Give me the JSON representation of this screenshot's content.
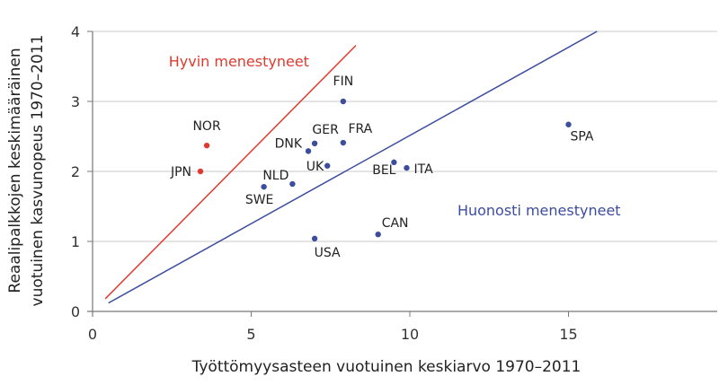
{
  "chart_data": {
    "type": "scatter",
    "title": "",
    "xlabel": "Työttömyysasteen vuotuinen keskiarvo 1970–2011",
    "ylabel_lines": [
      "Reaalipalkkojen keskimääräinen",
      "vuotuinen kasvunopeus 1970–2011"
    ],
    "xlim": [
      0,
      19.5
    ],
    "ylim": [
      0,
      4
    ],
    "xticks": [
      0,
      5,
      10,
      15
    ],
    "yticks": [
      0,
      1,
      2,
      3,
      4
    ],
    "grid": {
      "horizontal": true,
      "vertical": false
    },
    "series": [
      {
        "name": "Hyvin menestyneet",
        "color": "#e03a2f",
        "points": [
          {
            "label": "NOR",
            "x": 3.6,
            "y": 2.37
          },
          {
            "label": "JPN",
            "x": 3.4,
            "y": 2.0
          }
        ]
      },
      {
        "name": "Huonosti menestyneet",
        "color": "#3d4d9e",
        "points": [
          {
            "label": "FIN",
            "x": 7.9,
            "y": 3.0
          },
          {
            "label": "GER",
            "x": 7.0,
            "y": 2.4
          },
          {
            "label": "FRA",
            "x": 7.9,
            "y": 2.41
          },
          {
            "label": "DNK",
            "x": 6.8,
            "y": 2.29
          },
          {
            "label": "UK",
            "x": 7.4,
            "y": 2.08
          },
          {
            "label": "NLD",
            "x": 6.3,
            "y": 1.82
          },
          {
            "label": "SWE",
            "x": 5.4,
            "y": 1.78
          },
          {
            "label": "BEL",
            "x": 9.5,
            "y": 2.13
          },
          {
            "label": "ITA",
            "x": 9.9,
            "y": 2.05
          },
          {
            "label": "CAN",
            "x": 9.0,
            "y": 1.1
          },
          {
            "label": "USA",
            "x": 7.0,
            "y": 1.04
          },
          {
            "label": "SPA",
            "x": 15.0,
            "y": 2.67
          }
        ]
      }
    ],
    "lines": [
      {
        "name": "red-boundary",
        "color": "#e03a2f",
        "from": [
          0.4,
          0.18
        ],
        "to": [
          8.3,
          3.8
        ]
      },
      {
        "name": "blue-boundary",
        "color": "#3d4d9e",
        "from": [
          0.5,
          0.12
        ],
        "to": [
          15.9,
          4.0
        ]
      }
    ],
    "annotations": [
      {
        "text": "Hyvin menestyneet",
        "x": 2.4,
        "y": 3.5,
        "color": "#e03a2f"
      },
      {
        "text": "Huonosti menestyneet",
        "x": 11.5,
        "y": 1.37,
        "color": "#3d4d9e"
      }
    ]
  }
}
